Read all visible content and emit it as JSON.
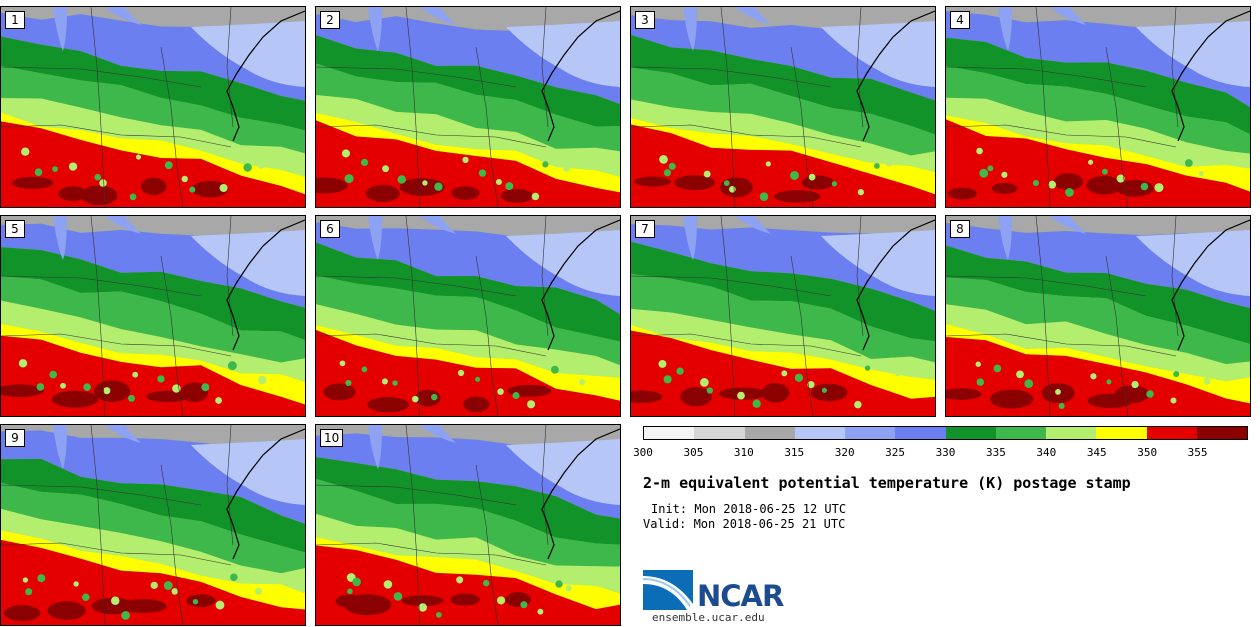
{
  "panels": [
    {
      "label": "1"
    },
    {
      "label": "2"
    },
    {
      "label": "3"
    },
    {
      "label": "4"
    },
    {
      "label": "5"
    },
    {
      "label": "6"
    },
    {
      "label": "7"
    },
    {
      "label": "8"
    },
    {
      "label": "9"
    },
    {
      "label": "10"
    }
  ],
  "colorbar": {
    "colors": [
      "#f4f4f4",
      "#d6d6d6",
      "#a8a8a8",
      "#b6c7f7",
      "#8ea2f3",
      "#6c7ff0",
      "#12932a",
      "#3fb84b",
      "#b4ee6f",
      "#ffff00",
      "#e50000",
      "#8b0000"
    ],
    "ticks": [
      "300",
      "305",
      "310",
      "315",
      "320",
      "325",
      "330",
      "335",
      "340",
      "345",
      "350",
      "355"
    ]
  },
  "title": "2-m equivalent potential temperature (K) postage stamp",
  "init_text": "Init: Mon 2018-06-25 12 UTC",
  "valid_text": "Valid: Mon 2018-06-25 21 UTC",
  "logo": {
    "text": "NCAR",
    "url": "ensemble.ucar.edu"
  }
}
